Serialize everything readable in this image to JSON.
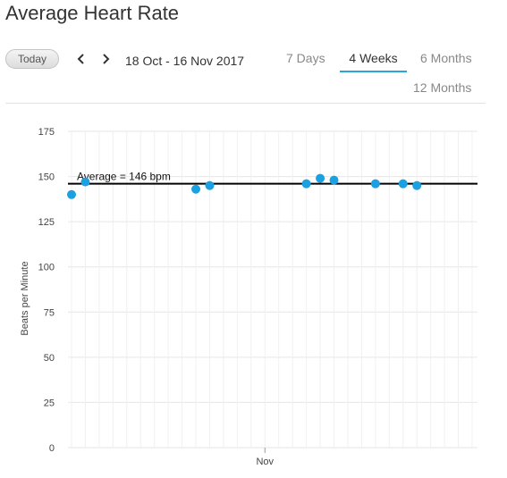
{
  "header": {
    "title": "Average Heart Rate"
  },
  "toolbar": {
    "today_label": "Today",
    "date_range": "18 Oct - 16 Nov 2017",
    "tabs": [
      {
        "label": "7 Days",
        "active": false
      },
      {
        "label": "4 Weeks",
        "active": true
      },
      {
        "label": "6 Months",
        "active": false
      },
      {
        "label": "12 Months",
        "active": false
      }
    ]
  },
  "colors": {
    "point": "#1ba1e2",
    "accent": "#2aa6d8",
    "average_line": "#000000",
    "grid": "#e6e6e6"
  },
  "chart_data": {
    "type": "scatter",
    "title": "",
    "xlabel": "",
    "ylabel": "Beats per Minute",
    "x_range": [
      "2017-10-18",
      "2017-11-16"
    ],
    "ylim": [
      0,
      175
    ],
    "yticks": [
      0,
      25,
      50,
      75,
      100,
      125,
      150,
      175
    ],
    "xticks": [
      {
        "date": "2017-11-01",
        "label": "Nov"
      }
    ],
    "grid": true,
    "points": [
      {
        "date": "2017-10-18",
        "value": 140
      },
      {
        "date": "2017-10-19",
        "value": 147
      },
      {
        "date": "2017-10-27",
        "value": 143
      },
      {
        "date": "2017-10-28",
        "value": 145
      },
      {
        "date": "2017-11-04",
        "value": 146
      },
      {
        "date": "2017-11-05",
        "value": 149
      },
      {
        "date": "2017-11-06",
        "value": 148
      },
      {
        "date": "2017-11-09",
        "value": 146
      },
      {
        "date": "2017-11-11",
        "value": 146
      },
      {
        "date": "2017-11-12",
        "value": 145
      }
    ],
    "average": {
      "value": 146,
      "label": "Average = 146 bpm"
    }
  }
}
